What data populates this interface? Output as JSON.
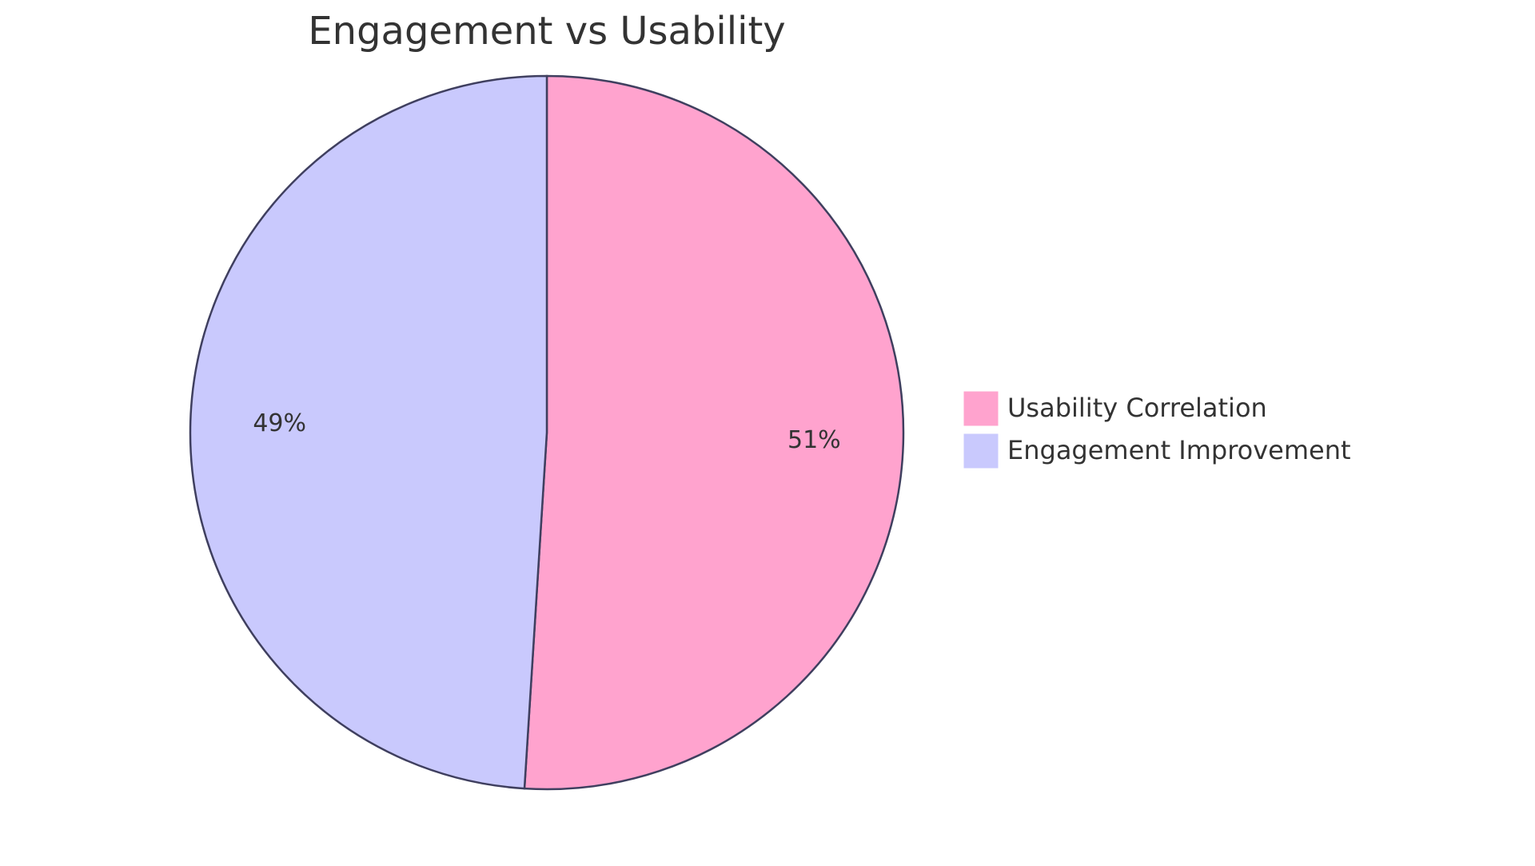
{
  "chart_data": {
    "type": "pie",
    "title": "Engagement vs Usability",
    "categories": [
      "Usability Correlation",
      "Engagement Improvement"
    ],
    "values": [
      51,
      49
    ],
    "value_labels": [
      "51%",
      "49%"
    ],
    "colors": [
      "#ffa3ce",
      "#c9c9fd"
    ],
    "legend": "right"
  }
}
